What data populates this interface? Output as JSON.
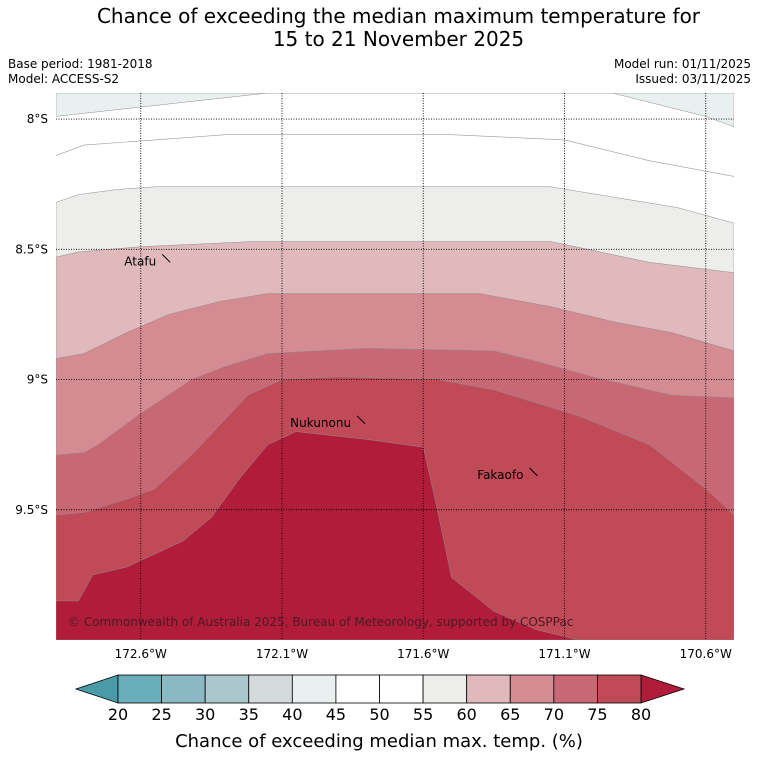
{
  "title": {
    "line1": "Chance of exceeding the median maximum temperature for",
    "line2": "15 to 21 November 2025"
  },
  "meta": {
    "base_period": "Base period: 1981-2018",
    "model": "Model: ACCESS-S2",
    "model_run": "Model run: 01/11/2025",
    "issued": "Issued: 03/11/2025"
  },
  "map": {
    "lon_range": [
      -172.9,
      -170.5
    ],
    "lat_range": [
      -10.0,
      -7.9
    ],
    "lat_labels": [
      {
        "value": -8.0,
        "label": "8°S"
      },
      {
        "value": -8.5,
        "label": "8.5°S"
      },
      {
        "value": -9.0,
        "label": "9°S"
      },
      {
        "value": -9.5,
        "label": "9.5°S"
      }
    ],
    "lon_labels": [
      {
        "value": -172.6,
        "label": "172.6°W"
      },
      {
        "value": -172.1,
        "label": "172.1°W"
      },
      {
        "value": -171.6,
        "label": "171.6°W"
      },
      {
        "value": -171.1,
        "label": "171.1°W"
      },
      {
        "value": -170.6,
        "label": "170.6°W"
      }
    ],
    "places": [
      {
        "name": "Atafu",
        "lon": -172.51,
        "lat": -8.55
      },
      {
        "name": "Nukunonu",
        "lon": -171.82,
        "lat": -9.17
      },
      {
        "name": "Fakaofo",
        "lon": -171.21,
        "lat": -9.37
      }
    ],
    "copyright": "© Commonwealth of Australia 2025, Bureau of Meteorology, supported by COSPPac",
    "contour_bands": [
      {
        "level": "40-45",
        "color": "#eaeff0",
        "points": [
          [
            -172.9,
            -7.9
          ],
          [
            -170.5,
            -7.9
          ],
          [
            -170.5,
            -8.03
          ],
          [
            -170.6,
            -7.99
          ],
          [
            -170.93,
            -7.9
          ],
          [
            -172.15,
            -7.9
          ],
          [
            -172.9,
            -7.99
          ]
        ]
      },
      {
        "level": "55-60",
        "color": "#ededeb",
        "points": [
          [
            -172.9,
            -8.32
          ],
          [
            -172.82,
            -8.29
          ],
          [
            -172.68,
            -8.27
          ],
          [
            -172.55,
            -8.26
          ],
          [
            -172.35,
            -8.26
          ],
          [
            -171.15,
            -8.26
          ],
          [
            -170.7,
            -8.34
          ],
          [
            -170.5,
            -8.4
          ],
          [
            -170.5,
            -10.0
          ],
          [
            -172.9,
            -10.0
          ]
        ]
      },
      {
        "level": "60-65",
        "color": "#dfb9bb",
        "points": [
          [
            -172.9,
            -8.53
          ],
          [
            -172.82,
            -8.51
          ],
          [
            -172.6,
            -8.49
          ],
          [
            -172.2,
            -8.47
          ],
          [
            -171.15,
            -8.47
          ],
          [
            -170.8,
            -8.55
          ],
          [
            -170.5,
            -8.59
          ],
          [
            -170.5,
            -10.0
          ],
          [
            -172.9,
            -10.0
          ]
        ]
      },
      {
        "level": "65-70",
        "color": "#d48b92",
        "points": [
          [
            -172.9,
            -8.92
          ],
          [
            -172.8,
            -8.9
          ],
          [
            -172.65,
            -8.82
          ],
          [
            -172.5,
            -8.75
          ],
          [
            -172.32,
            -8.7
          ],
          [
            -172.15,
            -8.67
          ],
          [
            -171.4,
            -8.67
          ],
          [
            -171.15,
            -8.72
          ],
          [
            -170.92,
            -8.78
          ],
          [
            -170.72,
            -8.82
          ],
          [
            -170.5,
            -8.89
          ],
          [
            -170.5,
            -10.0
          ],
          [
            -172.9,
            -10.0
          ]
        ]
      },
      {
        "level": "70-75",
        "color": "#c86875",
        "points": [
          [
            -172.9,
            -9.29
          ],
          [
            -172.8,
            -9.28
          ],
          [
            -172.75,
            -9.25
          ],
          [
            -172.6,
            -9.13
          ],
          [
            -172.42,
            -9.0
          ],
          [
            -172.3,
            -8.95
          ],
          [
            -172.15,
            -8.9
          ],
          [
            -171.8,
            -8.88
          ],
          [
            -171.35,
            -8.89
          ],
          [
            -171.2,
            -8.93
          ],
          [
            -171.0,
            -8.99
          ],
          [
            -170.72,
            -9.06
          ],
          [
            -170.5,
            -9.07
          ],
          [
            -170.5,
            -10.0
          ],
          [
            -172.9,
            -10.0
          ]
        ]
      },
      {
        "level": "75-80",
        "color": "#c04a58",
        "points": [
          [
            -172.9,
            -9.52
          ],
          [
            -172.8,
            -9.51
          ],
          [
            -172.65,
            -9.46
          ],
          [
            -172.55,
            -9.42
          ],
          [
            -172.42,
            -9.29
          ],
          [
            -172.22,
            -9.06
          ],
          [
            -172.1,
            -9.0
          ],
          [
            -171.9,
            -8.99
          ],
          [
            -171.55,
            -9.0
          ],
          [
            -171.35,
            -9.04
          ],
          [
            -171.05,
            -9.14
          ],
          [
            -170.8,
            -9.25
          ],
          [
            -170.6,
            -9.42
          ],
          [
            -170.5,
            -9.52
          ],
          [
            -170.5,
            -10.0
          ],
          [
            -172.9,
            -10.0
          ]
        ]
      },
      {
        "level": ">80",
        "color": "#b11c3a",
        "points": [
          [
            -172.9,
            -9.85
          ],
          [
            -172.82,
            -9.85
          ],
          [
            -172.77,
            -9.75
          ],
          [
            -172.65,
            -9.72
          ],
          [
            -172.45,
            -9.62
          ],
          [
            -172.35,
            -9.53
          ],
          [
            -172.25,
            -9.38
          ],
          [
            -172.15,
            -9.25
          ],
          [
            -172.05,
            -9.2
          ],
          [
            -171.8,
            -9.23
          ],
          [
            -171.6,
            -9.26
          ],
          [
            -171.55,
            -9.5
          ],
          [
            -171.5,
            -9.76
          ],
          [
            -171.35,
            -9.89
          ],
          [
            -171.2,
            -9.96
          ],
          [
            -171.05,
            -10.0
          ],
          [
            -172.9,
            -10.0
          ]
        ]
      }
    ],
    "contour_lines": [
      [
        [
          -172.9,
          -8.14
        ],
        [
          -172.8,
          -8.1
        ],
        [
          -172.55,
          -8.08
        ],
        [
          -172.3,
          -8.06
        ],
        [
          -171.5,
          -8.06
        ],
        [
          -171.1,
          -8.08
        ],
        [
          -170.8,
          -8.16
        ],
        [
          -170.5,
          -8.22
        ]
      ]
    ]
  },
  "colorbar": {
    "title": "Chance of exceeding median max. temp. (%)",
    "ticks": [
      "20",
      "25",
      "30",
      "35",
      "40",
      "45",
      "50",
      "55",
      "60",
      "65",
      "70",
      "75",
      "80"
    ],
    "under_color": "#4b9aa8",
    "over_color": "#b11c3a",
    "colors": [
      "#6aaebb",
      "#8ab9c3",
      "#a9c7cc",
      "#d3dadb",
      "#eaeff0",
      "#ffffff",
      "#ffffff",
      "#ededeb",
      "#dfb9bb",
      "#d48b92",
      "#c86875",
      "#c04a58"
    ]
  }
}
